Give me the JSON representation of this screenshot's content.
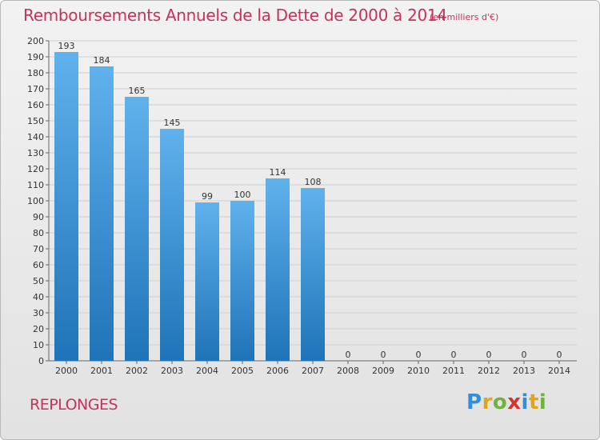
{
  "chart_data": {
    "type": "bar",
    "title": "Remboursements Annuels de la Dette de 2000 à 2014",
    "unit_note": "(en milliers d'€)",
    "categories": [
      "2000",
      "2001",
      "2002",
      "2003",
      "2004",
      "2005",
      "2006",
      "2007",
      "2008",
      "2009",
      "2010",
      "2011",
      "2012",
      "2013",
      "2014"
    ],
    "values": [
      193,
      184,
      165,
      145,
      99,
      100,
      114,
      108,
      0,
      0,
      0,
      0,
      0,
      0,
      0
    ],
    "data_labels": [
      "193",
      "184",
      "165",
      "145",
      "99",
      "100",
      "114",
      "108",
      "0",
      "0",
      "0",
      "0",
      "0",
      "0",
      "0"
    ],
    "yticks": [
      "0",
      "10",
      "20",
      "30",
      "40",
      "50",
      "60",
      "70",
      "80",
      "90",
      "100",
      "110",
      "120",
      "130",
      "140",
      "150",
      "160",
      "170",
      "180",
      "190",
      "200"
    ],
    "ylim": [
      0,
      200
    ],
    "xlabel": "",
    "ylabel": "",
    "grid": true,
    "bar_color_top": "#5fb2ec",
    "bar_color_bottom": "#1f73b8"
  },
  "commune": "REPLONGES",
  "logo": {
    "letters": [
      "P",
      "r",
      "o",
      "x",
      "i",
      "t",
      "i"
    ]
  }
}
